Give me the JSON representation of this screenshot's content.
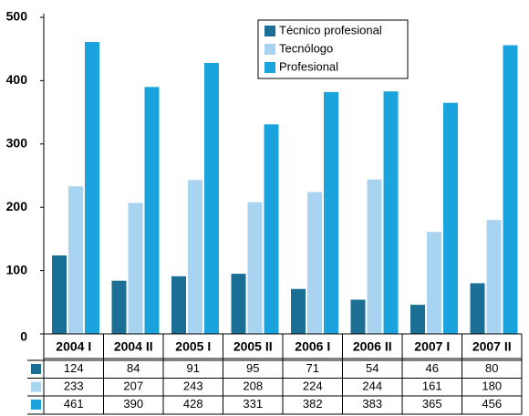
{
  "chart_data": {
    "type": "bar",
    "categories": [
      "2004 I",
      "2004 II",
      "2005 I",
      "2005 II",
      "2006 I",
      "2006 II",
      "2007 I",
      "2007 II"
    ],
    "series": [
      {
        "name": "Técnico profesional",
        "color": "#1b6f95",
        "values": [
          124,
          84,
          91,
          95,
          71,
          54,
          46,
          80
        ]
      },
      {
        "name": "Tecnólogo",
        "color": "#a8d3f1",
        "values": [
          233,
          207,
          243,
          208,
          224,
          244,
          161,
          180
        ]
      },
      {
        "name": "Profesional",
        "color": "#1ba3dd",
        "values": [
          461,
          390,
          428,
          331,
          382,
          383,
          365,
          456
        ]
      }
    ],
    "ylim": [
      0,
      500
    ],
    "yticks": [
      0,
      100,
      200,
      300,
      400,
      500
    ],
    "grid": false,
    "legend": "top"
  }
}
